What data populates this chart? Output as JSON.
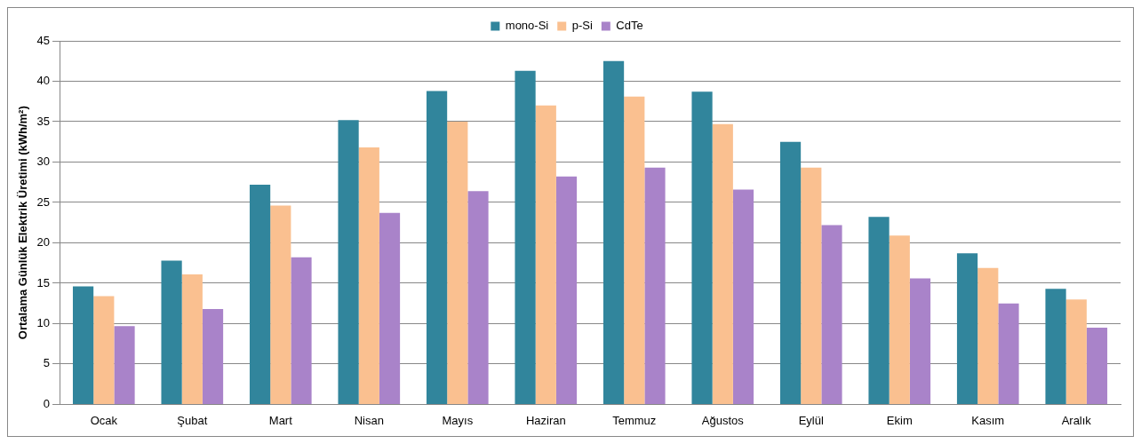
{
  "chart_data": {
    "type": "bar",
    "ylabel": "Ortalama Günlük Elektrik Üretimi (kWh/m²)",
    "categories": [
      "Ocak",
      "Şubat",
      "Mart",
      "Nisan",
      "Mayıs",
      "Haziran",
      "Temmuz",
      "Ağustos",
      "Eylül",
      "Ekim",
      "Kasım",
      "Aralık"
    ],
    "series": [
      {
        "name": "mono-Si",
        "color": "#31859c",
        "values": [
          14.6,
          17.8,
          27.2,
          35.2,
          38.8,
          41.3,
          42.5,
          38.7,
          32.5,
          23.2,
          18.7,
          14.3
        ]
      },
      {
        "name": "p-Si",
        "color": "#fac090",
        "values": [
          13.4,
          16.1,
          24.6,
          31.8,
          35.0,
          37.0,
          38.1,
          34.7,
          29.3,
          20.9,
          16.9,
          13.0
        ]
      },
      {
        "name": "CdTe",
        "color": "#a983c9",
        "values": [
          9.7,
          11.8,
          18.2,
          23.7,
          26.4,
          28.2,
          29.3,
          26.6,
          22.2,
          15.6,
          12.5,
          9.5
        ]
      }
    ],
    "ylim": [
      0,
      45
    ],
    "yticks": [
      0,
      5,
      10,
      15,
      20,
      25,
      30,
      35,
      40,
      45
    ],
    "grid": "y",
    "legend": "top"
  }
}
